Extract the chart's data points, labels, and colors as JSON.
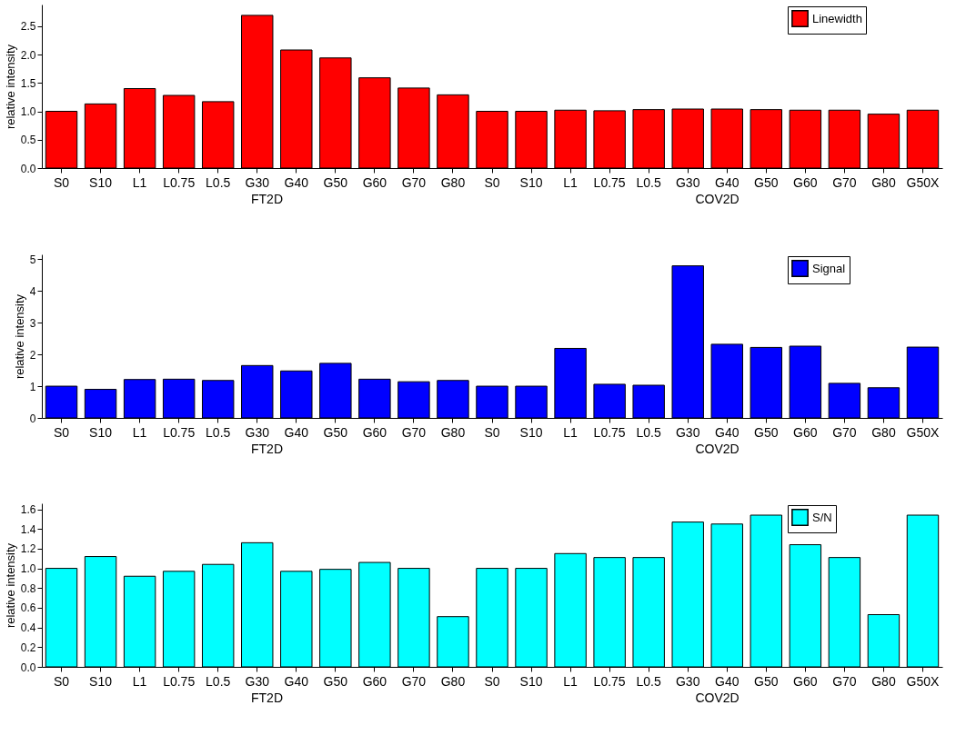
{
  "chart_data": [
    {
      "type": "bar",
      "categories": [
        "S0",
        "S10",
        "L1",
        "L0.75",
        "L0.5",
        "G30",
        "G40",
        "G50",
        "G60",
        "G70",
        "G80",
        "S0",
        "S10",
        "L1",
        "L0.75",
        "L0.5",
        "G30",
        "G40",
        "G50",
        "G60",
        "G70",
        "G80",
        "G50X"
      ],
      "series": [
        {
          "name": "Linewidth",
          "color": "#ff0000",
          "values": [
            1.0,
            1.13,
            1.4,
            1.28,
            1.17,
            2.69,
            2.08,
            1.94,
            1.59,
            1.41,
            1.29,
            1.0,
            1.0,
            1.02,
            1.01,
            1.03,
            1.04,
            1.04,
            1.03,
            1.02,
            1.02,
            0.95,
            1.02
          ]
        }
      ],
      "ylabel": "relative intensity",
      "ylim": [
        0,
        2.88
      ],
      "yticks": [
        {
          "value": 0,
          "label": "0.0"
        },
        0.5,
        {
          "value": 1,
          "label": "1.0"
        },
        1.5,
        {
          "value": 2,
          "label": "2.0"
        },
        2.5
      ],
      "annotations": [
        "FT2D",
        "COV2D"
      ],
      "legend": "top right",
      "grid": false
    },
    {
      "type": "bar",
      "categories": [
        "S0",
        "S10",
        "L1",
        "L0.75",
        "L0.5",
        "G30",
        "G40",
        "G50",
        "G60",
        "G70",
        "G80",
        "S0",
        "S10",
        "L1",
        "L0.75",
        "L0.5",
        "G30",
        "G40",
        "G50",
        "G60",
        "G70",
        "G80",
        "G50X"
      ],
      "series": [
        {
          "name": "Signal",
          "color": "#0000ff",
          "values": [
            1.0,
            0.9,
            1.21,
            1.22,
            1.18,
            1.65,
            1.48,
            1.72,
            1.22,
            1.14,
            1.18,
            1.0,
            1.0,
            2.19,
            1.06,
            1.03,
            4.79,
            2.32,
            2.22,
            2.26,
            1.09,
            0.95,
            2.23
          ]
        }
      ],
      "ylabel": "relative intensity",
      "ylim": [
        0,
        5.15
      ],
      "yticks": [
        0,
        1,
        2,
        3,
        4,
        5
      ],
      "annotations": [
        "FT2D",
        "COV2D"
      ],
      "legend": "top right",
      "grid": false
    },
    {
      "type": "bar",
      "categories": [
        "S0",
        "S10",
        "L1",
        "L0.75",
        "L0.5",
        "G30",
        "G40",
        "G50",
        "G60",
        "G70",
        "G80",
        "S0",
        "S10",
        "L1",
        "L0.75",
        "L0.5",
        "G30",
        "G40",
        "G50",
        "G60",
        "G70",
        "G80",
        "G50X"
      ],
      "series": [
        {
          "name": "S/N",
          "color": "#00ffff",
          "values": [
            1.0,
            1.12,
            0.92,
            0.97,
            1.04,
            1.26,
            0.97,
            0.99,
            1.06,
            1.0,
            0.51,
            1.0,
            1.0,
            1.15,
            1.11,
            1.11,
            1.47,
            1.45,
            1.54,
            1.24,
            1.11,
            0.53,
            1.54
          ]
        }
      ],
      "ylabel": "relative intensity",
      "ylim": [
        0,
        1.66
      ],
      "yticks": [
        {
          "value": 0,
          "label": "0.0"
        },
        0.2,
        0.4,
        0.6,
        0.8,
        {
          "value": 1,
          "label": "1.0"
        },
        1.2,
        1.4,
        1.6
      ],
      "annotations": [
        "FT2D",
        "COV2D"
      ],
      "legend": "top right",
      "grid": false
    }
  ]
}
